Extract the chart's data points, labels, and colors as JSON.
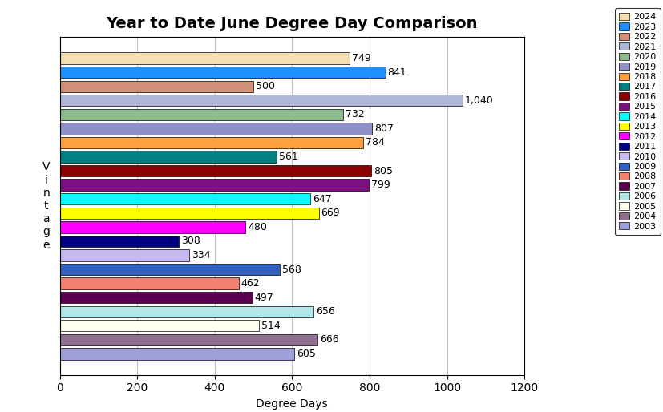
{
  "title": "Year to Date June Degree Day Comparison",
  "xlabel": "Degree Days",
  "years": [
    2024,
    2023,
    2022,
    2021,
    2020,
    2019,
    2018,
    2017,
    2016,
    2015,
    2014,
    2013,
    2012,
    2011,
    2010,
    2009,
    2008,
    2007,
    2006,
    2005,
    2004,
    2003
  ],
  "values": [
    749,
    841,
    500,
    1040,
    732,
    807,
    784,
    561,
    805,
    799,
    647,
    669,
    480,
    308,
    334,
    568,
    462,
    497,
    656,
    514,
    666,
    605
  ],
  "colors": [
    "#F5DEB3",
    "#1E90FF",
    "#D2927A",
    "#B0B8D8",
    "#8FBC8F",
    "#9090C8",
    "#FFA040",
    "#008080",
    "#8B0000",
    "#7B1080",
    "#00FFFF",
    "#FFFF00",
    "#FF00FF",
    "#000080",
    "#C8B8F0",
    "#3060C0",
    "#F08070",
    "#5A0050",
    "#B0E8E8",
    "#FFFFF0",
    "#907090",
    "#A0A0D8"
  ],
  "xlim": [
    0,
    1200
  ],
  "xticks": [
    0,
    200,
    400,
    600,
    800,
    1000,
    1200
  ],
  "bg_color": "#FFFFFF",
  "grid_color": "#C0C0C0",
  "title_fontsize": 14,
  "label_fontsize": 9,
  "axis_fontsize": 10,
  "legend_fontsize": 8
}
